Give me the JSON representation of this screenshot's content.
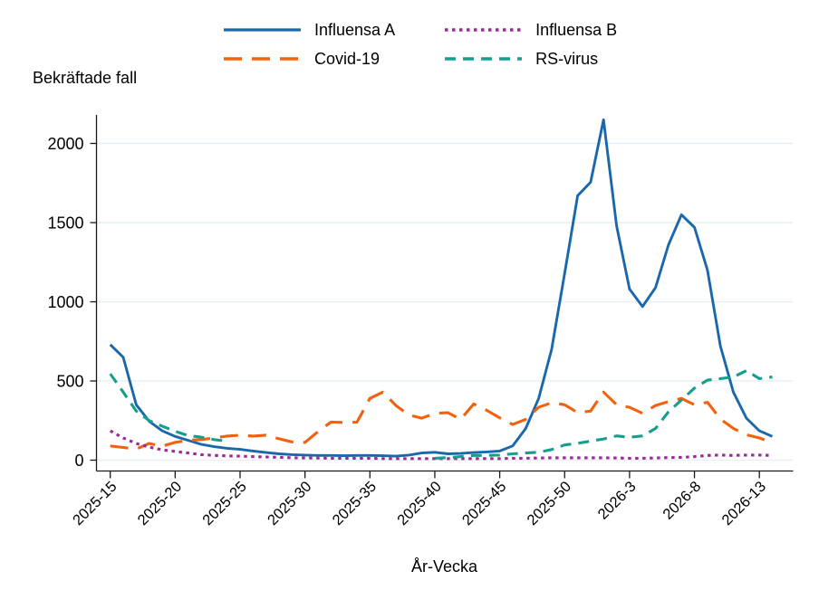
{
  "chart_data": {
    "type": "line",
    "title": "Bekräftade fall",
    "ylabel": "Bekräftade fall",
    "xlabel": "År-Vecka",
    "legend_position": "top",
    "grid": "horizontal-only",
    "ylim": [
      0,
      2250
    ],
    "y_ticks": [
      0,
      500,
      1000,
      1500,
      2000
    ],
    "x_tick_indices": [
      0,
      5,
      10,
      15,
      20,
      25,
      30,
      35,
      40,
      45,
      50
    ],
    "x_tick_labels": [
      "2025-15",
      "2025-20",
      "2025-25",
      "2025-30",
      "2025-35",
      "2025-40",
      "2025-45",
      "2025-50",
      "2026-3",
      "2026-8",
      "2026-13"
    ],
    "x_categories": [
      "2025-15",
      "2025-16",
      "2025-17",
      "2025-18",
      "2025-19",
      "2025-20",
      "2025-21",
      "2025-22",
      "2025-23",
      "2025-24",
      "2025-25",
      "2025-26",
      "2025-27",
      "2025-28",
      "2025-29",
      "2025-30",
      "2025-31",
      "2025-32",
      "2025-33",
      "2025-34",
      "2025-35",
      "2025-36",
      "2025-37",
      "2025-38",
      "2025-39",
      "2025-40",
      "2025-41",
      "2025-42",
      "2025-43",
      "2025-44",
      "2025-45",
      "2025-46",
      "2025-47",
      "2025-48",
      "2025-49",
      "2025-50",
      "2025-51",
      "2025-52",
      "2026-1",
      "2026-2",
      "2026-3",
      "2026-4",
      "2026-5",
      "2026-6",
      "2026-7",
      "2026-8",
      "2026-9",
      "2026-10",
      "2026-11",
      "2026-12",
      "2026-13",
      "2026-14"
    ],
    "colors": {
      "influensa_a": "#1a68ac",
      "covid_19": "#f4600c",
      "influensa_b": "#9c2a96",
      "rs_virus": "#169e8c",
      "gridline": "#e9eff3",
      "axis": "#1a1a1a"
    },
    "series": [
      {
        "name": "Influensa A",
        "color": "#1a68ac",
        "style": "solid",
        "values": [
          730,
          650,
          350,
          245,
          185,
          150,
          125,
          100,
          85,
          75,
          68,
          58,
          48,
          40,
          35,
          32,
          30,
          30,
          28,
          30,
          30,
          28,
          25,
          32,
          45,
          50,
          40,
          42,
          48,
          52,
          58,
          90,
          200,
          390,
          700,
          1180,
          1670,
          1755,
          2150,
          1480,
          1080,
          970,
          1090,
          1360,
          1550,
          1470,
          1200,
          720,
          430,
          265,
          185,
          150
        ]
      },
      {
        "name": "Covid-19",
        "color": "#f4600c",
        "style": "long-dash",
        "values": [
          90,
          80,
          70,
          105,
          88,
          112,
          125,
          130,
          140,
          152,
          157,
          152,
          158,
          135,
          115,
          112,
          180,
          240,
          238,
          240,
          390,
          430,
          345,
          285,
          265,
          295,
          300,
          258,
          355,
          315,
          267,
          225,
          258,
          334,
          363,
          350,
          300,
          310,
          430,
          350,
          334,
          296,
          345,
          370,
          390,
          350,
          365,
          260,
          200,
          160,
          140,
          110
        ]
      },
      {
        "name": "Influensa B",
        "color": "#9c2a96",
        "style": "dotted",
        "values": [
          185,
          140,
          105,
          82,
          65,
          55,
          45,
          35,
          30,
          27,
          25,
          22,
          20,
          18,
          15,
          14,
          13,
          12,
          12,
          12,
          12,
          10,
          10,
          10,
          10,
          10,
          10,
          10,
          10,
          10,
          10,
          12,
          12,
          14,
          15,
          15,
          15,
          15,
          15,
          14,
          12,
          12,
          14,
          16,
          18,
          22,
          30,
          32,
          30,
          32,
          32,
          30
        ]
      },
      {
        "name": "RS-virus",
        "color": "#169e8c",
        "style": "dashed",
        "values": [
          545,
          430,
          310,
          250,
          215,
          182,
          155,
          145,
          130,
          120,
          null,
          null,
          null,
          null,
          null,
          null,
          null,
          null,
          null,
          null,
          null,
          null,
          null,
          null,
          null,
          12,
          16,
          22,
          30,
          30,
          32,
          40,
          45,
          50,
          67,
          96,
          106,
          120,
          134,
          153,
          144,
          153,
          200,
          305,
          380,
          455,
          505,
          515,
          525,
          565,
          515,
          525
        ]
      }
    ]
  }
}
